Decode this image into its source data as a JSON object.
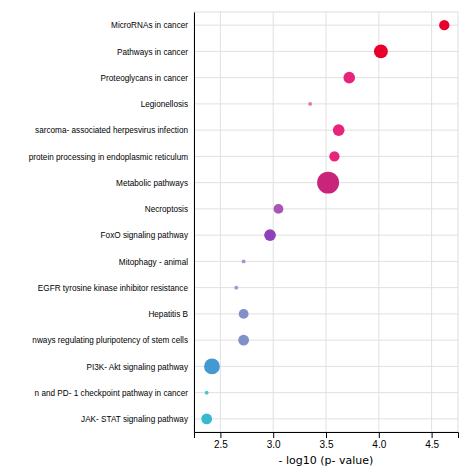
{
  "chart_data": {
    "type": "scatter",
    "categories": [
      "MicroRNAs in cancer",
      "Pathways in cancer",
      "Proteoglycans in cancer",
      "Legionellosis",
      "sarcoma- associated herpesvirus infection",
      "protein processing in endoplasmic reticulum",
      "Metabolic pathways",
      "Necroptosis",
      "FoxO signaling pathway",
      "Mitophagy -  animal",
      "EGFR tyrosine kinase inhibitor resistance",
      "Hepatitis B",
      "nways regulating pluripotency of stem cells",
      "PI3K- Akt signaling pathway",
      "n and PD- 1 checkpoint pathway in cancer",
      "JAK- STAT signaling pathway"
    ],
    "values": [
      4.62,
      4.02,
      3.72,
      3.35,
      3.62,
      3.58,
      3.52,
      3.05,
      2.97,
      2.72,
      2.65,
      2.72,
      2.72,
      2.42,
      2.37,
      2.37
    ],
    "sizes": [
      55,
      100,
      70,
      8,
      70,
      55,
      250,
      50,
      70,
      8,
      8,
      50,
      60,
      130,
      8,
      60
    ],
    "colors": [
      "#e8002b",
      "#e8002b",
      "#e8247a",
      "#e87aa8",
      "#e8247a",
      "#e8247a",
      "#c8247a",
      "#a855b5",
      "#9040b8",
      "#b090d0",
      "#b090d0",
      "#8090c8",
      "#8090c8",
      "#4499d0",
      "#40c8d8",
      "#36b8d0"
    ],
    "xlim": [
      2.25,
      4.75
    ],
    "xticks": [
      2.5,
      {
        "value": 3.0,
        "label": "3.0"
      },
      3.5,
      {
        "value": 4.0,
        "label": "4.0"
      },
      4.5
    ],
    "xlabel": "- log10 (p- value)",
    "grid": true
  }
}
